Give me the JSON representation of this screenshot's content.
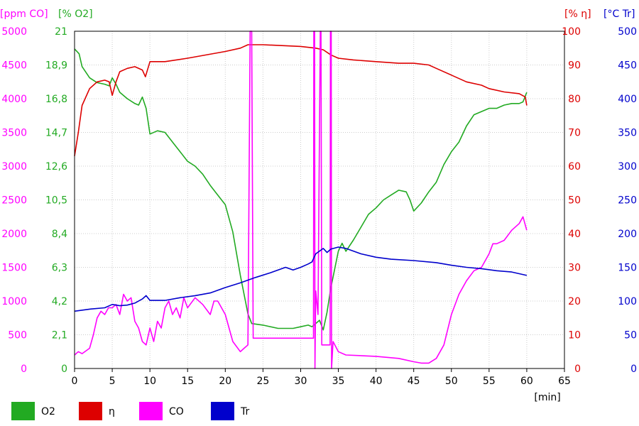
{
  "chart_data": {
    "type": "line",
    "x_axis": {
      "unit_label": "[min]",
      "range": [
        0,
        65
      ],
      "ticks": [
        "0",
        "5",
        "10",
        "15",
        "20",
        "25",
        "30",
        "35",
        "40",
        "45",
        "50",
        "55",
        "60",
        "65"
      ]
    },
    "y_axes": [
      {
        "id": "co",
        "label": "[ppm CO]",
        "color": "#ff00ff",
        "side": "left",
        "range": [
          0,
          5000
        ],
        "ticks": [
          "0",
          "500",
          "1000",
          "1500",
          "2000",
          "2500",
          "3000",
          "3500",
          "4000",
          "4500",
          "5000"
        ]
      },
      {
        "id": "o2",
        "label": "[% O2]",
        "color": "#22aa22",
        "side": "left",
        "range": [
          0,
          21
        ],
        "ticks": [
          "0",
          "2,1",
          "4,2",
          "6,3",
          "8,4",
          "10,5",
          "12,6",
          "14,7",
          "16,8",
          "18,9",
          "21"
        ]
      },
      {
        "id": "eta",
        "label": "[% η]",
        "color": "#dd0000",
        "side": "right",
        "range": [
          0,
          100
        ],
        "ticks": [
          "0",
          "10",
          "20",
          "30",
          "40",
          "50",
          "60",
          "70",
          "80",
          "90",
          "100"
        ]
      },
      {
        "id": "tr",
        "label": "[°C Tr]",
        "color": "#0000cc",
        "side": "right",
        "range": [
          0,
          500
        ],
        "ticks": [
          "0",
          "50",
          "100",
          "150",
          "200",
          "250",
          "300",
          "350",
          "400",
          "450",
          "500"
        ]
      }
    ],
    "grid": true,
    "legend_position": "bottom-left",
    "series": [
      {
        "name": "O2",
        "axis": "o2",
        "color": "#22aa22",
        "points": [
          [
            0,
            19.9
          ],
          [
            0.6,
            19.6
          ],
          [
            1,
            18.8
          ],
          [
            2,
            18.1
          ],
          [
            3,
            17.8
          ],
          [
            4,
            17.7
          ],
          [
            4.6,
            17.6
          ],
          [
            5,
            18.1
          ],
          [
            5.5,
            17.7
          ],
          [
            6,
            17.2
          ],
          [
            7,
            16.8
          ],
          [
            8,
            16.5
          ],
          [
            8.5,
            16.4
          ],
          [
            9,
            16.9
          ],
          [
            9.5,
            16.2
          ],
          [
            10,
            14.6
          ],
          [
            11,
            14.8
          ],
          [
            12,
            14.7
          ],
          [
            13,
            14.1
          ],
          [
            14,
            13.5
          ],
          [
            15,
            12.9
          ],
          [
            16,
            12.6
          ],
          [
            17,
            12.1
          ],
          [
            18,
            11.4
          ],
          [
            19,
            10.8
          ],
          [
            20,
            10.2
          ],
          [
            21,
            8.5
          ],
          [
            22,
            5.8
          ],
          [
            23,
            3.4
          ],
          [
            23.5,
            2.8
          ],
          [
            25,
            2.7
          ],
          [
            27,
            2.5
          ],
          [
            29,
            2.5
          ],
          [
            30,
            2.6
          ],
          [
            31,
            2.7
          ],
          [
            31.5,
            2.6
          ],
          [
            32,
            2.8
          ],
          [
            32.5,
            3.0
          ],
          [
            33,
            2.4
          ],
          [
            33.5,
            3.5
          ],
          [
            34,
            5.0
          ],
          [
            35,
            7.3
          ],
          [
            35.5,
            7.8
          ],
          [
            36,
            7.3
          ],
          [
            37,
            8.0
          ],
          [
            38,
            8.8
          ],
          [
            39,
            9.6
          ],
          [
            40,
            10.0
          ],
          [
            41,
            10.5
          ],
          [
            42,
            10.8
          ],
          [
            43,
            11.1
          ],
          [
            44,
            11.0
          ],
          [
            44.5,
            10.5
          ],
          [
            45,
            9.8
          ],
          [
            46,
            10.3
          ],
          [
            47,
            11.0
          ],
          [
            48,
            11.6
          ],
          [
            49,
            12.7
          ],
          [
            50,
            13.5
          ],
          [
            51,
            14.1
          ],
          [
            52,
            15.1
          ],
          [
            53,
            15.8
          ],
          [
            54,
            16.0
          ],
          [
            55,
            16.2
          ],
          [
            56,
            16.2
          ],
          [
            57,
            16.4
          ],
          [
            58,
            16.5
          ],
          [
            59,
            16.5
          ],
          [
            59.5,
            16.6
          ],
          [
            60,
            17.2
          ]
        ]
      },
      {
        "name": "η",
        "axis": "eta",
        "color": "#dd0000",
        "points": [
          [
            0,
            63
          ],
          [
            0.5,
            70
          ],
          [
            1,
            78
          ],
          [
            2,
            83
          ],
          [
            3,
            85
          ],
          [
            4,
            85.5
          ],
          [
            4.6,
            85
          ],
          [
            5,
            81
          ],
          [
            5.5,
            85
          ],
          [
            6,
            88
          ],
          [
            7,
            89
          ],
          [
            8,
            89.5
          ],
          [
            9,
            88.5
          ],
          [
            9.4,
            86.5
          ],
          [
            10,
            91
          ],
          [
            12,
            91
          ],
          [
            15,
            92
          ],
          [
            20,
            94
          ],
          [
            22,
            95
          ],
          [
            23,
            96
          ],
          [
            25,
            96
          ],
          [
            30,
            95.5
          ],
          [
            32,
            95
          ],
          [
            33,
            94.5
          ],
          [
            34,
            93
          ],
          [
            35,
            92
          ],
          [
            37,
            91.5
          ],
          [
            40,
            91
          ],
          [
            43,
            90.5
          ],
          [
            45,
            90.5
          ],
          [
            47,
            90
          ],
          [
            48,
            89
          ],
          [
            50,
            87
          ],
          [
            52,
            85
          ],
          [
            54,
            84
          ],
          [
            55,
            83
          ],
          [
            57,
            82
          ],
          [
            59,
            81.5
          ],
          [
            59.8,
            80.5
          ],
          [
            60,
            78
          ]
        ]
      },
      {
        "name": "CO",
        "axis": "co",
        "color": "#ff00ff",
        "points": [
          [
            0,
            200
          ],
          [
            0.5,
            250
          ],
          [
            1,
            220
          ],
          [
            2,
            300
          ],
          [
            2.5,
            500
          ],
          [
            3,
            750
          ],
          [
            3.5,
            850
          ],
          [
            4,
            800
          ],
          [
            4.5,
            900
          ],
          [
            5,
            900
          ],
          [
            5.5,
            950
          ],
          [
            6,
            800
          ],
          [
            6.5,
            1100
          ],
          [
            7,
            1000
          ],
          [
            7.5,
            1050
          ],
          [
            8,
            700
          ],
          [
            8.5,
            600
          ],
          [
            9,
            400
          ],
          [
            9.5,
            350
          ],
          [
            10,
            600
          ],
          [
            10.5,
            400
          ],
          [
            11,
            700
          ],
          [
            11.5,
            600
          ],
          [
            12,
            900
          ],
          [
            12.5,
            1000
          ],
          [
            13,
            800
          ],
          [
            13.5,
            900
          ],
          [
            14,
            750
          ],
          [
            14.5,
            1050
          ],
          [
            15,
            900
          ],
          [
            16,
            1050
          ],
          [
            17,
            950
          ],
          [
            18,
            800
          ],
          [
            18.5,
            1000
          ],
          [
            19,
            1000
          ],
          [
            20,
            800
          ],
          [
            21,
            400
          ],
          [
            22,
            250
          ],
          [
            22.5,
            300
          ],
          [
            23,
            350
          ],
          [
            23.3,
            5000
          ],
          [
            23.5,
            5000
          ],
          [
            23.7,
            450
          ],
          [
            24,
            450
          ],
          [
            31.7,
            450
          ],
          [
            31.75,
            5000
          ],
          [
            31.85,
            5000
          ],
          [
            31.9,
            0
          ],
          [
            32,
            1150
          ],
          [
            32.3,
            800
          ],
          [
            32.6,
            5000
          ],
          [
            32.7,
            5000
          ],
          [
            32.8,
            350
          ],
          [
            33.9,
            350
          ],
          [
            33.95,
            5000
          ],
          [
            34.05,
            5000
          ],
          [
            34.1,
            0
          ],
          [
            34.3,
            400
          ],
          [
            35,
            250
          ],
          [
            36,
            200
          ],
          [
            40,
            180
          ],
          [
            43,
            150
          ],
          [
            45,
            100
          ],
          [
            46,
            80
          ],
          [
            47,
            80
          ],
          [
            48,
            150
          ],
          [
            49,
            350
          ],
          [
            50,
            800
          ],
          [
            51,
            1100
          ],
          [
            52,
            1300
          ],
          [
            53,
            1450
          ],
          [
            54,
            1500
          ],
          [
            55,
            1700
          ],
          [
            55.5,
            1850
          ],
          [
            56,
            1850
          ],
          [
            57,
            1900
          ],
          [
            58,
            2050
          ],
          [
            59,
            2150
          ],
          [
            59.5,
            2250
          ],
          [
            60,
            2050
          ]
        ]
      },
      {
        "name": "Tr",
        "axis": "tr",
        "color": "#0000cc",
        "points": [
          [
            0,
            85
          ],
          [
            2,
            88
          ],
          [
            4,
            90
          ],
          [
            5,
            95
          ],
          [
            6,
            93
          ],
          [
            7,
            94
          ],
          [
            8,
            97
          ],
          [
            9,
            103
          ],
          [
            9.5,
            108
          ],
          [
            10,
            101
          ],
          [
            12,
            101
          ],
          [
            14,
            105
          ],
          [
            16,
            108
          ],
          [
            18,
            112
          ],
          [
            20,
            120
          ],
          [
            22,
            127
          ],
          [
            24,
            135
          ],
          [
            26,
            142
          ],
          [
            28,
            150
          ],
          [
            29,
            146
          ],
          [
            30,
            150
          ],
          [
            31,
            155
          ],
          [
            31.5,
            158
          ],
          [
            32,
            170
          ],
          [
            33,
            178
          ],
          [
            33.5,
            172
          ],
          [
            34,
            177
          ],
          [
            35,
            180
          ],
          [
            36,
            178
          ],
          [
            38,
            170
          ],
          [
            40,
            165
          ],
          [
            42,
            162
          ],
          [
            45,
            160
          ],
          [
            48,
            157
          ],
          [
            50,
            153
          ],
          [
            52,
            150
          ],
          [
            54,
            148
          ],
          [
            56,
            145
          ],
          [
            58,
            143
          ],
          [
            60,
            138
          ]
        ]
      }
    ]
  },
  "legend": [
    {
      "label": "O2",
      "color": "#22aa22"
    },
    {
      "label": "η",
      "color": "#dd0000"
    },
    {
      "label": "CO",
      "color": "#ff00ff"
    },
    {
      "label": "Tr",
      "color": "#0000cc"
    }
  ]
}
